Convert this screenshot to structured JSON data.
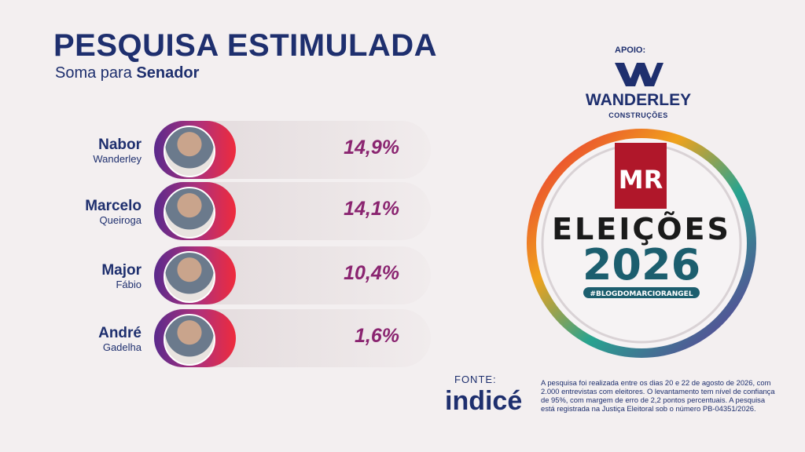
{
  "header": {
    "title": "PESQUISA ESTIMULADA",
    "subtitle_prefix": "Soma para",
    "subtitle_bold": "Senador"
  },
  "candidates": [
    {
      "first": "Nabor",
      "last": "Wanderley",
      "result": "14,9%"
    },
    {
      "first": "Marcelo",
      "last": "Queiroga",
      "result": "14,1%"
    },
    {
      "first": "Major",
      "last": "Fábio",
      "result": "10,4%"
    },
    {
      "first": "André",
      "last": "Gadelha",
      "result": "1,6%"
    }
  ],
  "sponsor": {
    "label": "APOIO:",
    "name": "WANDERLEY",
    "sub": "CONSTRUÇÕES"
  },
  "logo": {
    "mark": "MR",
    "title": "ELEIÇÕES",
    "year": "2026",
    "hashtag": "#BLOGDOMARCIORANGEL"
  },
  "source": {
    "label": "FONTE:",
    "name": "indicé"
  },
  "note": "A pesquisa foi realizada entre os dias 20 e 22 de agosto de 2026, com 2.000 entrevistas com eleitores. O levantamento tem nível de confiança de 95%, com margem de erro de 2,2 pontos percentuais. A pesquisa está registrada na Justiça Eleitoral sob o número PB-04351/2026."
}
